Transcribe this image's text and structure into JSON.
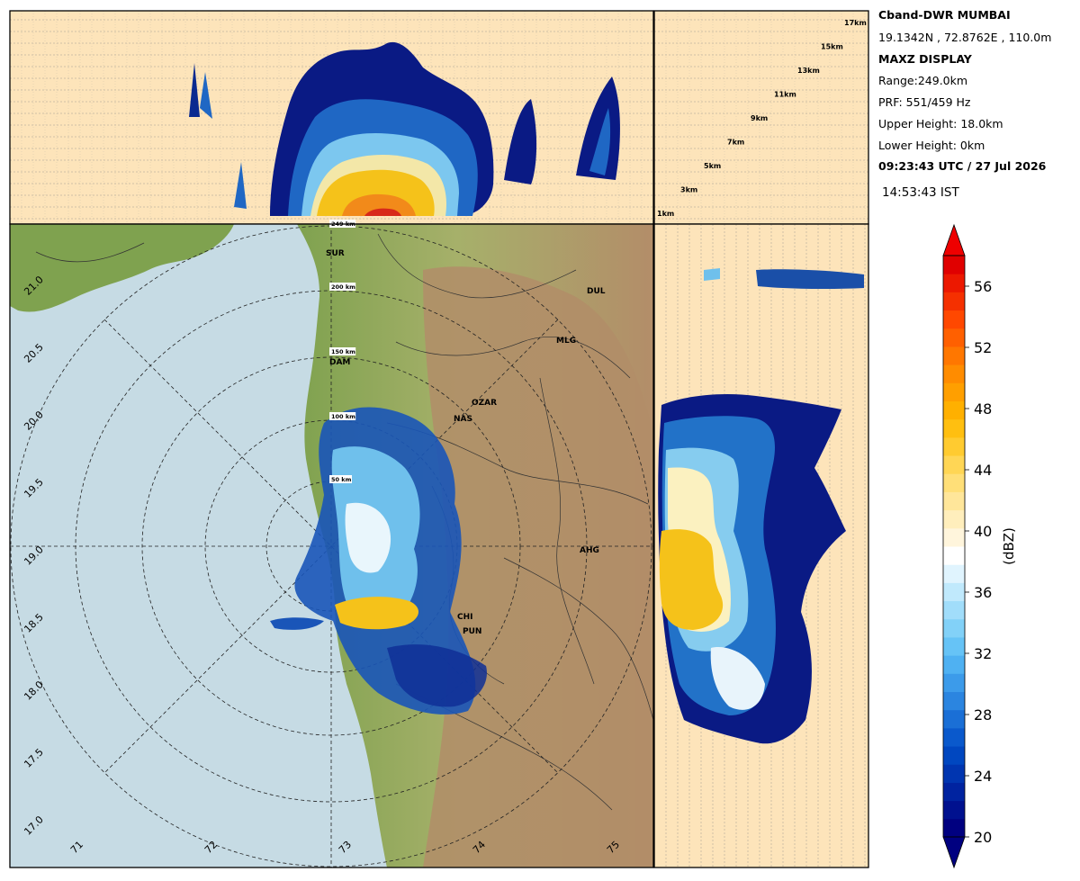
{
  "station": {
    "name": "Cband-DWR MUMBAI",
    "location": "19.1342N , 72.8762E , 110.0m",
    "display": "MAXZ DISPLAY",
    "range": "Range:249.0km",
    "prf": "PRF: 551/459 Hz",
    "upper_height": "Upper Height: 18.0km",
    "lower_height": "Lower Height: 0km",
    "utc_time": "09:23:43 UTC / 27 Jul 2026",
    "ist_time": "14:53:43  IST"
  },
  "height_labels": [
    "1km",
    "3km",
    "5km",
    "7km",
    "9km",
    "11km",
    "13km",
    "15km",
    "17km"
  ],
  "range_ring_labels": [
    "50 km",
    "100 km",
    "150 km",
    "200 km",
    "249 km"
  ],
  "latitude_labels": [
    "21.0",
    "20.5",
    "20.0",
    "19.5",
    "19.0",
    "18.5",
    "18.0",
    "17.5",
    "17.0"
  ],
  "longitude_labels": [
    "71",
    "72",
    "73",
    "74",
    "75"
  ],
  "place_labels": [
    "SUR",
    "DUL",
    "DAM",
    "MLG",
    "OZAR",
    "NAS",
    "AHG",
    "CHI",
    "PUN"
  ],
  "colorbar": {
    "label": "(dBZ)",
    "min": 20,
    "max": 58,
    "tick_labels": [
      "20",
      "24",
      "28",
      "32",
      "36",
      "40",
      "44",
      "48",
      "52",
      "56"
    ]
  },
  "colors": {
    "background_panel": "#fde4ba",
    "sea": "#c6dbe4",
    "land_low": "#8dae5c",
    "land_high": "#b28d69"
  }
}
